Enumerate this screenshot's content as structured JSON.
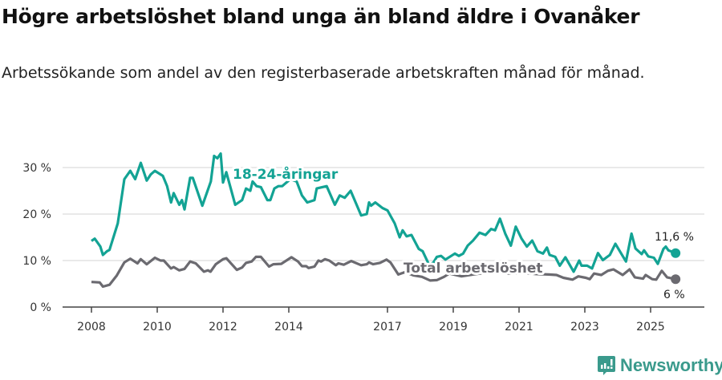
{
  "title": "Högre arbetslöshet bland unga än bland äldre i Ovanåker",
  "subtitle": "Arbetssökande som andel av den registerbaserade arbetskraften månad för månad.",
  "logo": {
    "text": "Newsworthy",
    "color": "#3a9a8c"
  },
  "chart_data": {
    "type": "line",
    "title": "Högre arbetslöshet bland unga än bland äldre i Ovanåker",
    "xlabel": "",
    "ylabel": "",
    "xlim": [
      2007.25,
      2026.5
    ],
    "ylim": [
      0,
      30
    ],
    "x_ticks": [
      2008,
      2010,
      2012,
      2014,
      2017,
      2019,
      2021,
      2023,
      2025
    ],
    "x_tick_labels": [
      "2008",
      "2010",
      "2012",
      "2014",
      "2017",
      "2019",
      "2021",
      "2023",
      "2025"
    ],
    "y_ticks": [
      0,
      10,
      20,
      30
    ],
    "y_tick_labels": [
      "0 %",
      "10 %",
      "20 %",
      "30 %"
    ],
    "grid": true,
    "series": [
      {
        "name": "18-24-åringar",
        "color": "#13a394",
        "end_label": "11,6 %",
        "x": [
          2008.0,
          2008.1,
          2008.27,
          2008.35,
          2008.47,
          2008.55,
          2008.8,
          2009.0,
          2009.18,
          2009.33,
          2009.5,
          2009.68,
          2009.8,
          2009.93,
          2010.17,
          2010.3,
          2010.42,
          2010.5,
          2010.67,
          2010.75,
          2010.83,
          2011.0,
          2011.08,
          2011.37,
          2011.63,
          2011.73,
          2011.83,
          2011.93,
          2012.0,
          2012.1,
          2012.37,
          2012.58,
          2012.7,
          2012.83,
          2012.9,
          2013.02,
          2013.15,
          2013.35,
          2013.44,
          2013.56,
          2013.68,
          2013.8,
          2013.88,
          2014.05,
          2014.24,
          2014.4,
          2014.56,
          2014.78,
          2014.85,
          2015.15,
          2015.4,
          2015.55,
          2015.7,
          2015.88,
          2016.2,
          2016.37,
          2016.44,
          2016.5,
          2016.63,
          2016.85,
          2017.0,
          2017.22,
          2017.37,
          2017.46,
          2017.58,
          2017.73,
          2017.95,
          2018.07,
          2018.27,
          2018.4,
          2018.5,
          2018.63,
          2018.76,
          2019.05,
          2019.17,
          2019.3,
          2019.44,
          2019.6,
          2019.8,
          2019.98,
          2020.15,
          2020.27,
          2020.42,
          2020.58,
          2020.75,
          2020.9,
          2021.07,
          2021.24,
          2021.4,
          2021.56,
          2021.73,
          2021.85,
          2021.93,
          2022.1,
          2022.24,
          2022.41,
          2022.66,
          2022.83,
          2022.9,
          2023.07,
          2023.22,
          2023.4,
          2023.55,
          2023.76,
          2023.93,
          2024.25,
          2024.42,
          2024.54,
          2024.73,
          2024.8,
          2024.93,
          2025.1,
          2025.22,
          2025.39,
          2025.46,
          2025.54,
          2025.76
        ],
        "y": [
          14.2,
          14.7,
          13,
          11.2,
          12,
          12.3,
          18,
          27.5,
          29.3,
          27.5,
          31,
          27.2,
          28.5,
          29.3,
          28.2,
          26,
          22.5,
          24.5,
          22,
          23,
          21,
          27.8,
          27.8,
          21.8,
          27,
          32.5,
          32,
          33,
          26.8,
          29,
          22,
          23,
          25.5,
          25,
          27,
          26,
          25.8,
          23,
          23,
          25.5,
          26,
          26,
          26.5,
          27.5,
          27,
          24,
          22.5,
          23,
          25.5,
          26,
          22,
          24,
          23.5,
          25,
          19.7,
          20,
          22.5,
          21.8,
          22.5,
          21.3,
          20.8,
          18,
          15,
          16.5,
          15.2,
          15.5,
          12.5,
          12,
          9,
          9.6,
          10.8,
          11,
          10.2,
          11.5,
          11,
          11.5,
          13.2,
          14.3,
          16,
          15.5,
          16.8,
          16.5,
          19,
          15.8,
          13.2,
          17.3,
          14.8,
          13,
          14.3,
          12,
          11.5,
          12.8,
          11.2,
          10.8,
          8.9,
          10.7,
          7.6,
          10,
          8.9,
          8.9,
          8.3,
          11.6,
          10.1,
          11.2,
          13.6,
          9.8,
          15.8,
          12.6,
          11.4,
          12.2,
          10.9,
          10.6,
          9.3,
          12.5,
          13,
          12.2,
          11.6
        ]
      },
      {
        "name": "Total arbetslöshet",
        "color": "#6b6a70",
        "end_label": "6 %",
        "x": [
          2008.0,
          2008.25,
          2008.35,
          2008.55,
          2008.77,
          2009.0,
          2009.18,
          2009.4,
          2009.5,
          2009.68,
          2009.93,
          2010.1,
          2010.2,
          2010.42,
          2010.5,
          2010.67,
          2010.83,
          2011.0,
          2011.17,
          2011.42,
          2011.54,
          2011.62,
          2011.78,
          2012.0,
          2012.1,
          2012.42,
          2012.58,
          2012.7,
          2012.87,
          2013.0,
          2013.15,
          2013.4,
          2013.53,
          2013.77,
          2014.08,
          2014.28,
          2014.4,
          2014.53,
          2014.6,
          2014.78,
          2014.9,
          2014.98,
          2015.1,
          2015.23,
          2015.43,
          2015.51,
          2015.67,
          2015.9,
          2016.2,
          2016.37,
          2016.44,
          2016.56,
          2016.77,
          2016.97,
          2017.09,
          2017.33,
          2017.53,
          2017.8,
          2018.05,
          2018.3,
          2018.5,
          2018.72,
          2018.88,
          2019.25,
          2019.6,
          2019.9,
          2020.3,
          2020.7,
          2021.1,
          2021.5,
          2021.9,
          2022.14,
          2022.35,
          2022.63,
          2022.8,
          2023.03,
          2023.15,
          2023.28,
          2023.5,
          2023.7,
          2023.87,
          2024.15,
          2024.36,
          2024.52,
          2024.77,
          2024.85,
          2025.05,
          2025.17,
          2025.34,
          2025.5,
          2025.76
        ],
        "y": [
          5.4,
          5.3,
          4.4,
          4.8,
          6.8,
          9.6,
          10.4,
          9.4,
          10.3,
          9.2,
          10.6,
          10,
          10,
          8.3,
          8.6,
          7.9,
          8.2,
          9.8,
          9.4,
          7.6,
          7.9,
          7.6,
          9.2,
          10.3,
          10.5,
          8,
          8.5,
          9.5,
          9.8,
          10.8,
          10.8,
          8.7,
          9.2,
          9.3,
          10.7,
          9.8,
          8.8,
          8.8,
          8.4,
          8.7,
          10,
          9.8,
          10.3,
          10,
          9,
          9.4,
          9.1,
          9.9,
          9,
          9.2,
          9.6,
          9.2,
          9.5,
          10.2,
          9.6,
          7,
          7.5,
          6.8,
          6.5,
          5.7,
          5.8,
          6.5,
          7.2,
          6.6,
          7,
          7.3,
          7.6,
          7.2,
          7.4,
          7.1,
          7,
          6.9,
          6.3,
          5.9,
          6.6,
          6.3,
          6,
          7.2,
          6.9,
          7.8,
          8.1,
          6.9,
          8.1,
          6.4,
          6.1,
          6.9,
          6,
          5.9,
          7.8,
          6.4,
          6
        ]
      }
    ]
  }
}
